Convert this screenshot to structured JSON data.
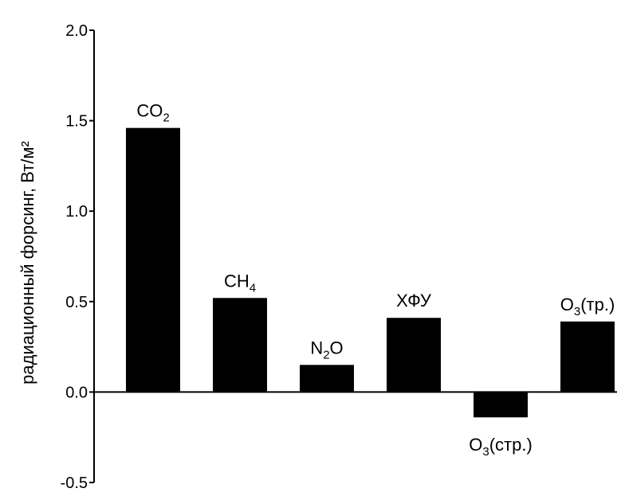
{
  "chart_data": {
    "type": "bar",
    "title": "",
    "xlabel": "",
    "ylabel": "радиационный форсинг, Вт/м²",
    "ylim": [
      -0.5,
      2.0
    ],
    "yticks": [
      {
        "value": 2.0,
        "label": "2.0"
      },
      {
        "value": 1.5,
        "label": "1.5"
      },
      {
        "value": 1.0,
        "label": "1.0"
      },
      {
        "value": 0.5,
        "label": "0.5"
      },
      {
        "value": 0.0,
        "label": "0.0"
      },
      {
        "value": -0.5,
        "label": "-0.5"
      }
    ],
    "grid": false,
    "categories": [
      {
        "base": "CO",
        "sub": "2",
        "suffix": ""
      },
      {
        "base": "CH",
        "sub": "4",
        "suffix": ""
      },
      {
        "base": "N",
        "sub": "2",
        "suffix": "O"
      },
      {
        "base": "ХФУ",
        "sub": "",
        "suffix": ""
      },
      {
        "base": "O",
        "sub": "3",
        "suffix": "(стр.)"
      },
      {
        "base": "O",
        "sub": "3",
        "suffix": "(тр.)"
      }
    ],
    "values": [
      1.46,
      0.52,
      0.15,
      0.41,
      -0.14,
      0.39
    ],
    "bar_color": "#000000"
  }
}
